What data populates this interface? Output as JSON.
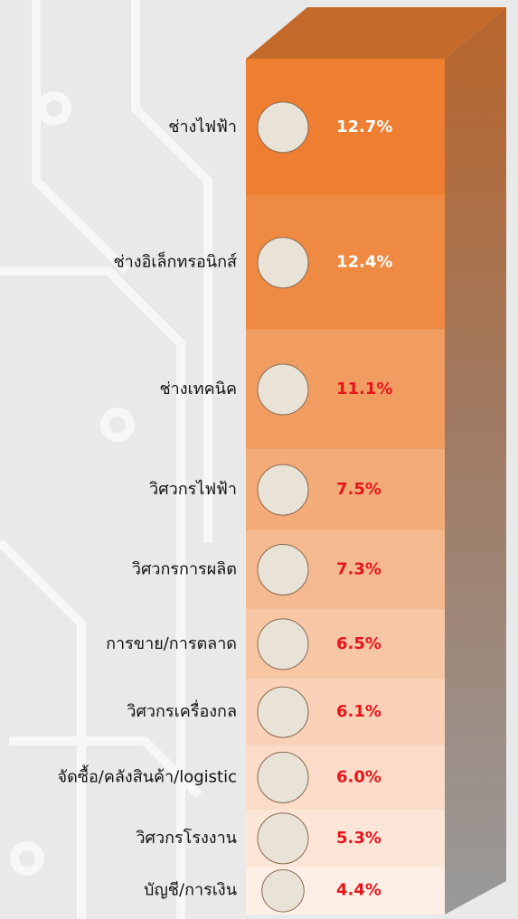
{
  "chart_data": {
    "type": "stacked-column",
    "categories": [
      "ช่างไฟฟ้า",
      "ช่างอิเล็กทรอนิกส์",
      "ช่างเทคนิค",
      "วิศวกรไฟฟ้า",
      "วิศวกรการผลิต",
      "การขาย/การตลาด",
      "วิศวกรเครื่องกล",
      "จัดซื้อ/คลังสินค้า/logistic",
      "วิศวกรโรงงาน",
      "บัญชี/การเงิน"
    ],
    "values": [
      12.7,
      12.4,
      11.1,
      7.5,
      7.3,
      6.5,
      6.1,
      6.0,
      5.3,
      4.4
    ],
    "value_labels": [
      "12.7%",
      "12.4%",
      "11.1%",
      "7.5%",
      "7.3%",
      "6.5%",
      "6.1%",
      "6.0%",
      "5.3%",
      "4.4%"
    ],
    "colors": [
      "#ee7e31",
      "#ef8a42",
      "#f19d61",
      "#f3ab78",
      "#f5b98f",
      "#f7c6a4",
      "#f9d2b8",
      "#fadcc8",
      "#fce6d8",
      "#fdefe5"
    ],
    "label_colors": [
      "#ffffff",
      "#ffffff",
      "#e8141b",
      "#e8141b",
      "#e8141b",
      "#e8141b",
      "#e8141b",
      "#e8141b",
      "#e8141b",
      "#e8141b"
    ]
  }
}
